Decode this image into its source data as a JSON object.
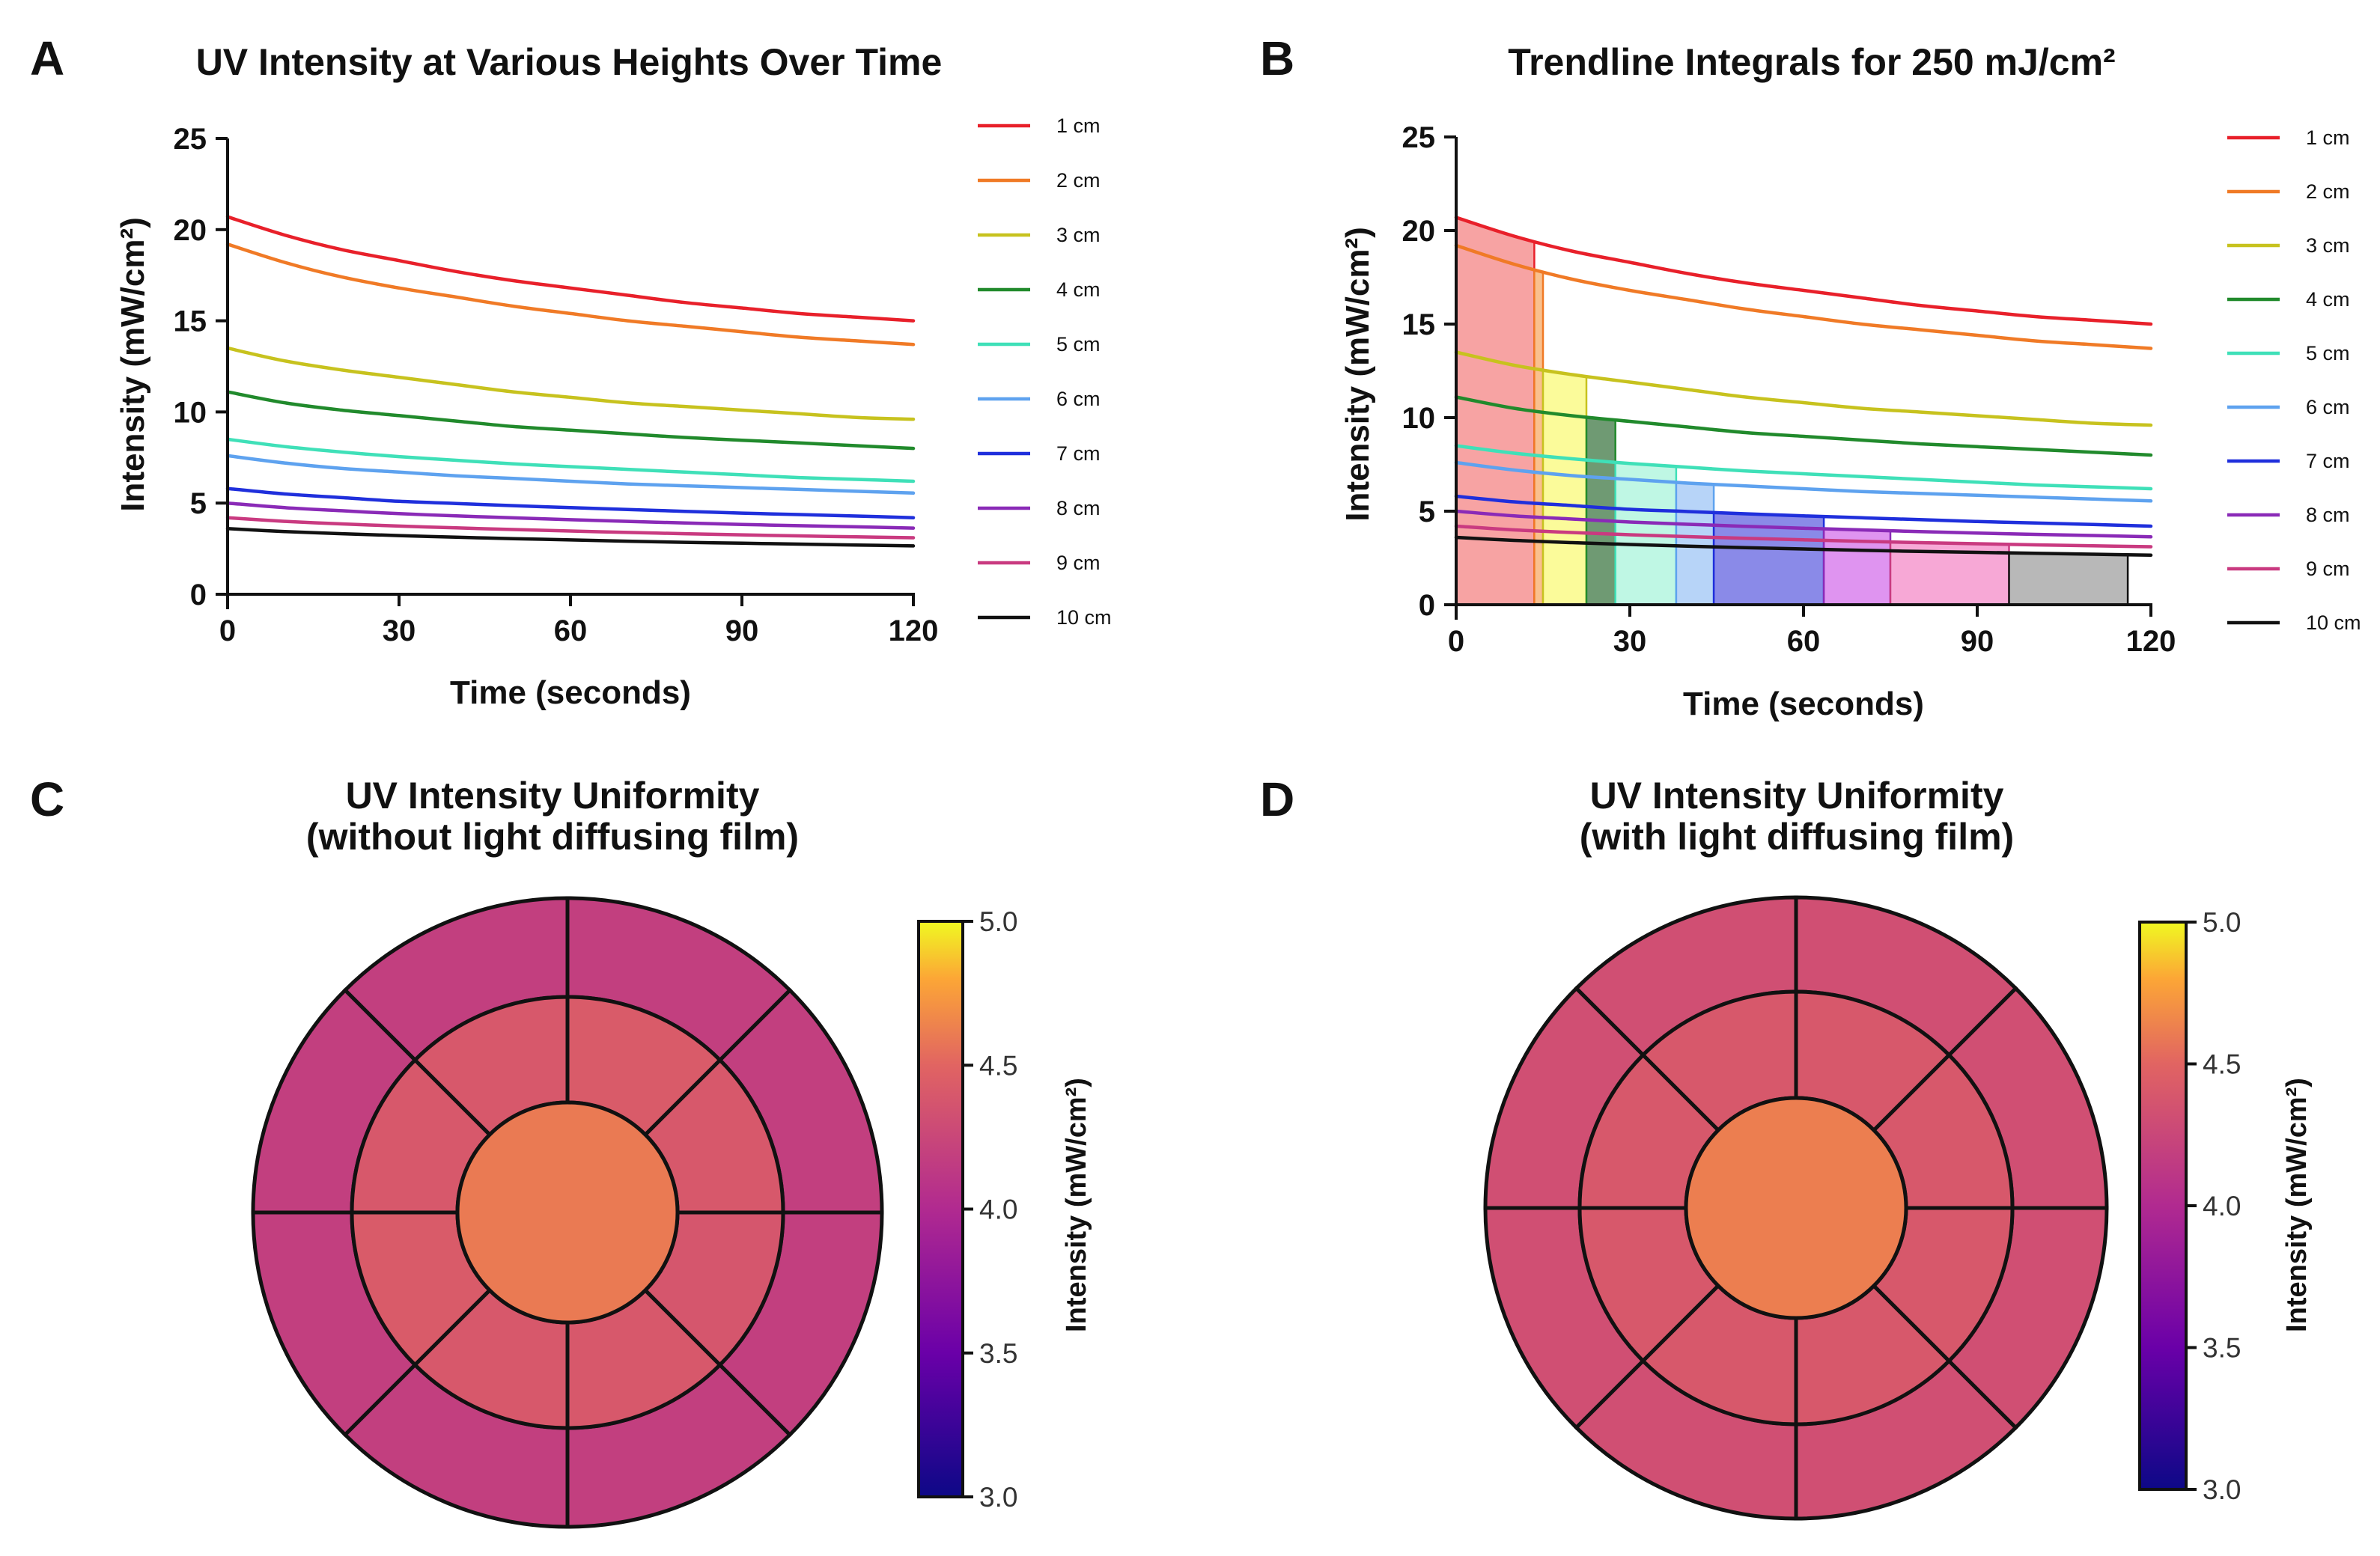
{
  "figure": {
    "panels": [
      {
        "letter": "A"
      },
      {
        "letter": "B"
      },
      {
        "letter": "C"
      },
      {
        "letter": "D"
      }
    ]
  },
  "chart_data": [
    {
      "id": "A",
      "type": "line",
      "title": "UV Intensity at Various Heights Over Time",
      "xlabel": "Time (seconds)",
      "ylabel": "Intensity (mW/cm²)",
      "xlim": [
        0,
        120
      ],
      "ylim": [
        0,
        25
      ],
      "xticks": [
        0,
        30,
        60,
        90,
        120
      ],
      "yticks": [
        0,
        5,
        10,
        15,
        20,
        25
      ],
      "legend_position": "right",
      "x": [
        0,
        10,
        20,
        30,
        40,
        50,
        60,
        70,
        80,
        90,
        100,
        110,
        120
      ],
      "series": [
        {
          "name": "1 cm",
          "color": "#e8202a",
          "values": [
            20.7,
            19.7,
            18.9,
            18.3,
            17.7,
            17.2,
            16.8,
            16.4,
            16.0,
            15.7,
            15.4,
            15.2,
            15.0
          ]
        },
        {
          "name": "2 cm",
          "color": "#f07a26",
          "values": [
            19.2,
            18.2,
            17.4,
            16.8,
            16.3,
            15.8,
            15.4,
            15.0,
            14.7,
            14.4,
            14.1,
            13.9,
            13.7
          ]
        },
        {
          "name": "3 cm",
          "color": "#c7c21e",
          "values": [
            13.5,
            12.8,
            12.3,
            11.9,
            11.5,
            11.1,
            10.8,
            10.5,
            10.3,
            10.1,
            9.9,
            9.7,
            9.6
          ]
        },
        {
          "name": "4 cm",
          "color": "#218a2c",
          "values": [
            11.1,
            10.5,
            10.1,
            9.8,
            9.5,
            9.2,
            9.0,
            8.8,
            8.6,
            8.45,
            8.3,
            8.15,
            8.0
          ]
        },
        {
          "name": "5 cm",
          "color": "#3fe0b8",
          "values": [
            8.5,
            8.1,
            7.8,
            7.55,
            7.35,
            7.15,
            7.0,
            6.85,
            6.7,
            6.55,
            6.4,
            6.3,
            6.2
          ]
        },
        {
          "name": "6 cm",
          "color": "#5ea2ef",
          "values": [
            7.6,
            7.2,
            6.9,
            6.7,
            6.5,
            6.35,
            6.2,
            6.05,
            5.95,
            5.85,
            5.75,
            5.65,
            5.55
          ]
        },
        {
          "name": "7 cm",
          "color": "#1f2fdc",
          "values": [
            5.8,
            5.5,
            5.3,
            5.1,
            4.98,
            4.86,
            4.75,
            4.65,
            4.55,
            4.45,
            4.37,
            4.29,
            4.2
          ]
        },
        {
          "name": "8 cm",
          "color": "#8a2ab7",
          "values": [
            5.0,
            4.75,
            4.58,
            4.42,
            4.3,
            4.19,
            4.09,
            4.0,
            3.91,
            3.83,
            3.76,
            3.7,
            3.63
          ]
        },
        {
          "name": "9 cm",
          "color": "#c93a80",
          "values": [
            4.2,
            4.0,
            3.86,
            3.74,
            3.64,
            3.55,
            3.47,
            3.39,
            3.32,
            3.26,
            3.2,
            3.15,
            3.1
          ]
        },
        {
          "name": "10 cm",
          "color": "#111111",
          "values": [
            3.6,
            3.44,
            3.32,
            3.22,
            3.13,
            3.05,
            2.98,
            2.91,
            2.85,
            2.8,
            2.75,
            2.7,
            2.65
          ]
        }
      ]
    },
    {
      "id": "B",
      "type": "area",
      "title": "Trendline Integrals for 250 mJ/cm²",
      "xlabel": "Time (seconds)",
      "ylabel": "Intensity (mW/cm²)",
      "xlim": [
        0,
        120
      ],
      "ylim": [
        0,
        25
      ],
      "xticks": [
        0,
        30,
        60,
        90,
        120
      ],
      "yticks": [
        0,
        5,
        10,
        15,
        20,
        25
      ],
      "legend_position": "right",
      "x": [
        0,
        10,
        20,
        30,
        40,
        50,
        60,
        70,
        80,
        90,
        100,
        110,
        120
      ],
      "series": [
        {
          "name": "1 cm",
          "color": "#e8202a",
          "fill": "#f7a3a3",
          "fill_range": [
            0,
            13.5
          ],
          "values": [
            20.7,
            19.7,
            18.9,
            18.3,
            17.7,
            17.2,
            16.8,
            16.4,
            16.0,
            15.7,
            15.4,
            15.2,
            15.0
          ]
        },
        {
          "name": "2 cm",
          "color": "#f07a26",
          "fill": "#f9c08e",
          "fill_range": [
            13.5,
            15.0
          ],
          "values": [
            19.2,
            18.2,
            17.4,
            16.8,
            16.3,
            15.8,
            15.4,
            15.0,
            14.7,
            14.4,
            14.1,
            13.9,
            13.7
          ]
        },
        {
          "name": "3 cm",
          "color": "#c7c21e",
          "fill": "#fbfb9a",
          "fill_range": [
            15.0,
            22.5
          ],
          "values": [
            13.5,
            12.8,
            12.3,
            11.9,
            11.5,
            11.1,
            10.8,
            10.5,
            10.3,
            10.1,
            9.9,
            9.7,
            9.6
          ]
        },
        {
          "name": "4 cm",
          "color": "#218a2c",
          "fill": "#6f9a73",
          "fill_range": [
            22.5,
            27.5
          ],
          "values": [
            11.1,
            10.5,
            10.1,
            9.8,
            9.5,
            9.2,
            9.0,
            8.8,
            8.6,
            8.45,
            8.3,
            8.15,
            8.0
          ]
        },
        {
          "name": "5 cm",
          "color": "#3fe0b8",
          "fill": "#bff7e4",
          "fill_range": [
            27.5,
            38.0
          ],
          "values": [
            8.5,
            8.1,
            7.8,
            7.55,
            7.35,
            7.15,
            7.0,
            6.85,
            6.7,
            6.55,
            6.4,
            6.3,
            6.2
          ]
        },
        {
          "name": "6 cm",
          "color": "#5ea2ef",
          "fill": "#b7d4f8",
          "fill_range": [
            38.0,
            44.5
          ],
          "values": [
            7.6,
            7.2,
            6.9,
            6.7,
            6.5,
            6.35,
            6.2,
            6.05,
            5.95,
            5.85,
            5.75,
            5.65,
            5.55
          ]
        },
        {
          "name": "7 cm",
          "color": "#1f2fdc",
          "fill": "#8a8ae8",
          "fill_range": [
            44.5,
            63.5
          ],
          "values": [
            5.8,
            5.5,
            5.3,
            5.1,
            4.98,
            4.86,
            4.75,
            4.65,
            4.55,
            4.45,
            4.37,
            4.29,
            4.2
          ]
        },
        {
          "name": "8 cm",
          "color": "#8a2ab7",
          "fill": "#df94f0",
          "fill_range": [
            63.5,
            75.0
          ],
          "values": [
            5.0,
            4.75,
            4.58,
            4.42,
            4.3,
            4.19,
            4.09,
            4.0,
            3.91,
            3.83,
            3.76,
            3.7,
            3.63
          ]
        },
        {
          "name": "9 cm",
          "color": "#c93a80",
          "fill": "#f7a8d6",
          "fill_range": [
            75.0,
            95.5
          ],
          "values": [
            4.2,
            4.0,
            3.86,
            3.74,
            3.64,
            3.55,
            3.47,
            3.39,
            3.32,
            3.26,
            3.2,
            3.15,
            3.1
          ]
        },
        {
          "name": "10 cm",
          "color": "#111111",
          "fill": "#b8b8b8",
          "fill_range": [
            95.5,
            116.0
          ],
          "values": [
            3.6,
            3.44,
            3.32,
            3.22,
            3.13,
            3.05,
            2.98,
            2.91,
            2.85,
            2.8,
            2.75,
            2.7,
            2.65
          ]
        }
      ]
    },
    {
      "id": "C",
      "type": "heatmap",
      "title_lines": [
        "UV Intensity Uniformity",
        "(without light diffusing film)"
      ],
      "colorbar": {
        "min": 3.0,
        "max": 5.0,
        "ticks": [
          "5.0",
          "4.5",
          "4.0",
          "3.5",
          "3.0"
        ],
        "label": "Intensity (mW/cm²)"
      },
      "center": 4.6,
      "middle_ring": [
        4.4,
        4.4,
        4.42,
        4.4,
        4.4,
        4.38,
        4.4,
        4.42
      ],
      "outer_ring": [
        4.18,
        4.18,
        4.18,
        4.18,
        4.18,
        4.18,
        4.18,
        4.18
      ]
    },
    {
      "id": "D",
      "type": "heatmap",
      "title_lines": [
        "UV Intensity Uniformity",
        "(with light diffusing film)"
      ],
      "colorbar": {
        "min": 3.0,
        "max": 5.0,
        "ticks": [
          "5.0",
          "4.5",
          "4.0",
          "3.5",
          "3.0"
        ],
        "label": "Intensity (mW/cm²)"
      },
      "center": 4.62,
      "middle_ring": [
        4.4,
        4.4,
        4.4,
        4.4,
        4.4,
        4.4,
        4.4,
        4.4
      ],
      "outer_ring": [
        4.32,
        4.32,
        4.32,
        4.32,
        4.32,
        4.32,
        4.32,
        4.32
      ]
    }
  ]
}
